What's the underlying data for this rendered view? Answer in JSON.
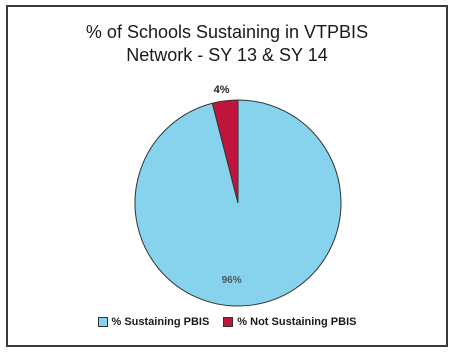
{
  "chart_data": {
    "type": "pie",
    "title_lines": [
      "% of Schools Sustaining in VTPBIS",
      "Network - SY 13 & SY 14"
    ],
    "slices": [
      {
        "label": "% Sustaining PBIS",
        "value": 96,
        "display": "96%",
        "color": "#87d3ee"
      },
      {
        "label": "% Not Sustaining PBIS",
        "value": 4,
        "display": "4%",
        "color": "#c0143c"
      }
    ],
    "legend_position": "bottom"
  },
  "legend": {
    "sustaining_label": "% Sustaining PBIS",
    "not_sustaining_label": "% Not Sustaining PBIS"
  }
}
